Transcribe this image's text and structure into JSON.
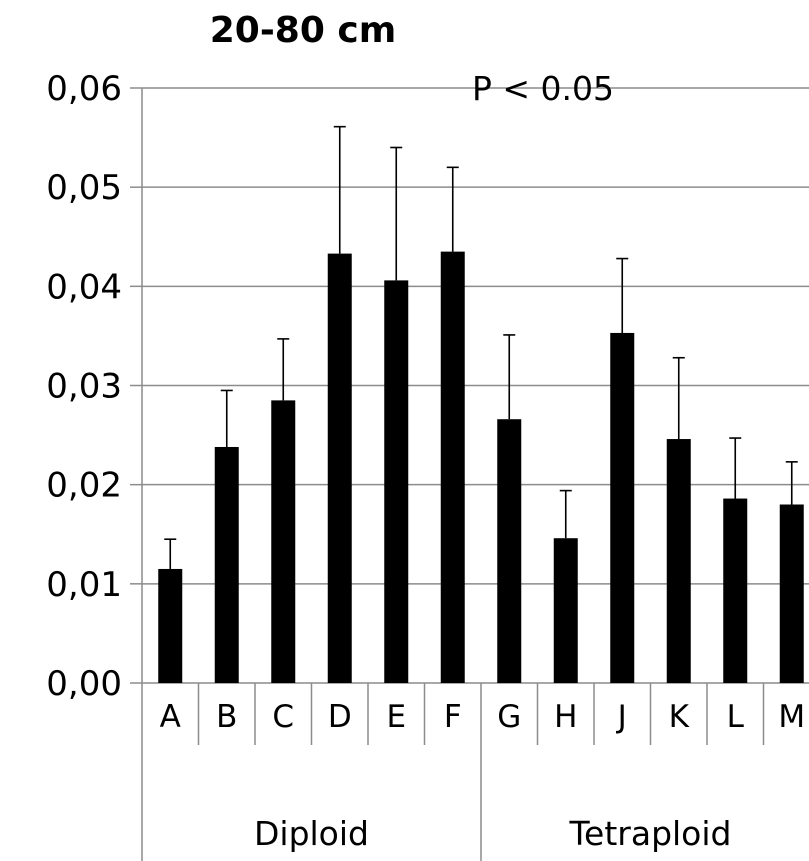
{
  "chart_data": {
    "type": "bar",
    "title": "20-80 cm",
    "annotation": "P < 0.05",
    "xlabel": "",
    "ylabel": "",
    "ylim": [
      0,
      0.06
    ],
    "y_ticks": [
      "0,00",
      "0,01",
      "0,02",
      "0,03",
      "0,04",
      "0,05",
      "0,06"
    ],
    "grid": true,
    "legend": "none",
    "categories": [
      "A",
      "B",
      "C",
      "D",
      "E",
      "F",
      "G",
      "H",
      "J",
      "K",
      "L",
      "M"
    ],
    "groups": [
      {
        "name": "Diploid",
        "categories": [
          "A",
          "B",
          "C",
          "D",
          "E",
          "F"
        ]
      },
      {
        "name": "Tetraploid",
        "categories": [
          "G",
          "H",
          "J",
          "K",
          "L",
          "M"
        ]
      }
    ],
    "values": [
      0.0115,
      0.0238,
      0.0285,
      0.0433,
      0.0406,
      0.0435,
      0.0266,
      0.0146,
      0.0353,
      0.0246,
      0.0186,
      0.018
    ],
    "error_upper": [
      0.003,
      0.0057,
      0.0062,
      0.0128,
      0.0134,
      0.0085,
      0.0085,
      0.0048,
      0.0075,
      0.0082,
      0.0061,
      0.0043
    ],
    "bar_color": "#000000",
    "grid_color": "#8c8c8c"
  }
}
